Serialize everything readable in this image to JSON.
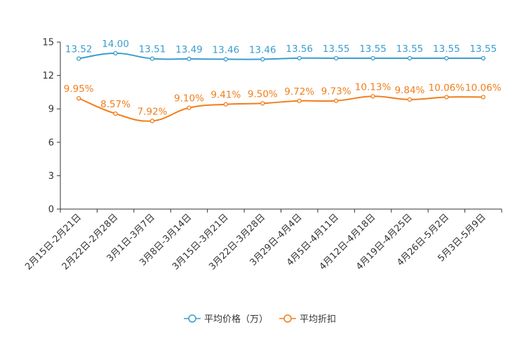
{
  "chart_data": {
    "type": "line",
    "title": "",
    "xlabel": "",
    "ylabel": "",
    "ylim": [
      0,
      15
    ],
    "yticks": [
      0,
      3,
      6,
      9,
      12,
      15
    ],
    "grid": false,
    "legend_position": "bottom-center",
    "categories": [
      "2月15日-2月21日",
      "2月22日-2月28日",
      "3月1日-3月7日",
      "3月8日-3月14日",
      "3月15日-3月21日",
      "3月22日-3月28日",
      "3月29日-4月4日",
      "4月5日-4月11日",
      "4月12日-4月18日",
      "4月19日-4月25日",
      "4月26日-5月2日",
      "5月3日-5月9日"
    ],
    "series": [
      {
        "name": "平均价格（万）",
        "color": "#3b9dce",
        "values": [
          13.52,
          14.0,
          13.51,
          13.49,
          13.46,
          13.46,
          13.56,
          13.55,
          13.55,
          13.55,
          13.55,
          13.55
        ],
        "labels": [
          "13.52",
          "14.00",
          "13.51",
          "13.49",
          "13.46",
          "13.46",
          "13.56",
          "13.55",
          "13.55",
          "13.55",
          "13.55",
          "13.55"
        ]
      },
      {
        "name": "平均折扣",
        "color": "#f07e1b",
        "values": [
          9.95,
          8.57,
          7.92,
          9.1,
          9.41,
          9.5,
          9.72,
          9.73,
          10.13,
          9.84,
          10.06,
          10.06
        ],
        "labels": [
          "9.95%",
          "8.57%",
          "7.92%",
          "9.10%",
          "9.41%",
          "9.50%",
          "9.72%",
          "9.73%",
          "10.13%",
          "9.84%",
          "10.06%",
          "10.06%"
        ]
      }
    ]
  }
}
